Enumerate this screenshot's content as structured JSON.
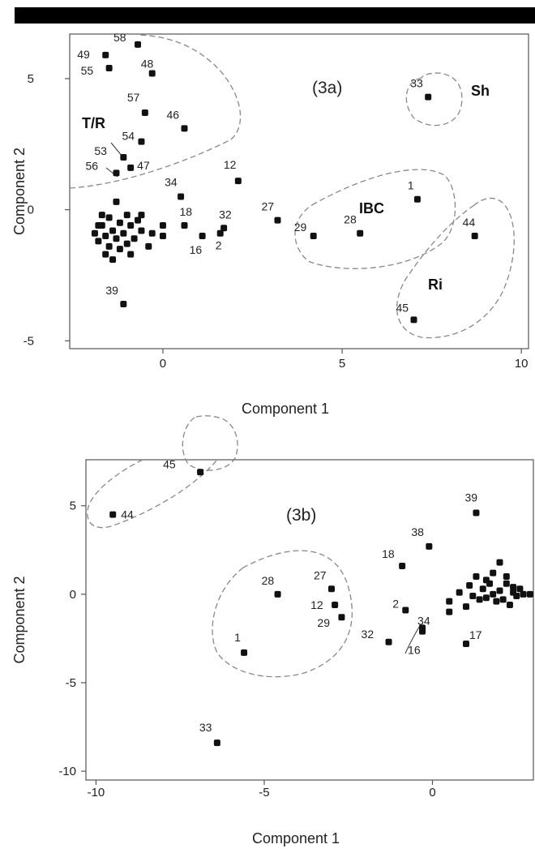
{
  "chart_data": [
    {
      "type": "scatter",
      "panel_tag": "(3a)",
      "xlabel": "Component 1",
      "ylabel": "Component 2",
      "xlim": [
        -2.6,
        10.2
      ],
      "ylim": [
        -5.3,
        6.7
      ],
      "xticks": [
        0,
        5,
        10
      ],
      "yticks": [
        -5,
        0,
        5
      ],
      "groups": [
        "T/R",
        "Sh",
        "IBC",
        "Ri"
      ],
      "points": [
        {
          "label": "58",
          "x": -0.7,
          "y": 6.3
        },
        {
          "label": "49",
          "x": -1.6,
          "y": 5.9
        },
        {
          "label": "55",
          "x": -1.5,
          "y": 5.4
        },
        {
          "label": "48",
          "x": -0.3,
          "y": 5.2
        },
        {
          "label": "57",
          "x": -0.5,
          "y": 3.7
        },
        {
          "label": "46",
          "x": 0.6,
          "y": 3.1
        },
        {
          "label": "54",
          "x": -0.6,
          "y": 2.6
        },
        {
          "label": "53",
          "x": -1.1,
          "y": 2.0
        },
        {
          "label": "47",
          "x": -0.9,
          "y": 1.6
        },
        {
          "label": "56",
          "x": -1.3,
          "y": 1.4
        },
        {
          "label": "12",
          "x": 2.1,
          "y": 1.1
        },
        {
          "label": "34",
          "x": 0.5,
          "y": 0.5
        },
        {
          "label": "18",
          "x": 0.6,
          "y": -0.6
        },
        {
          "label": "32",
          "x": 1.7,
          "y": -0.7
        },
        {
          "label": "16",
          "x": 1.1,
          "y": -1.0
        },
        {
          "label": "2",
          "x": 1.6,
          "y": -0.9
        },
        {
          "label": "27",
          "x": 3.2,
          "y": -0.4
        },
        {
          "label": "29",
          "x": 4.2,
          "y": -1.0
        },
        {
          "label": "28",
          "x": 5.5,
          "y": -0.9
        },
        {
          "label": "1",
          "x": 7.1,
          "y": 0.4
        },
        {
          "label": "33",
          "x": 7.4,
          "y": 4.3
        },
        {
          "label": "44",
          "x": 8.7,
          "y": -1.0
        },
        {
          "label": "45",
          "x": 7.0,
          "y": -4.2
        },
        {
          "label": "39",
          "x": -1.1,
          "y": -3.6
        },
        {
          "label": "",
          "x": -1.9,
          "y": -0.9
        },
        {
          "label": "",
          "x": -1.8,
          "y": -1.2
        },
        {
          "label": "",
          "x": -1.7,
          "y": -0.6
        },
        {
          "label": "",
          "x": -1.6,
          "y": -1.0
        },
        {
          "label": "",
          "x": -1.5,
          "y": -1.4
        },
        {
          "label": "",
          "x": -1.5,
          "y": -0.3
        },
        {
          "label": "",
          "x": -1.4,
          "y": -0.8
        },
        {
          "label": "",
          "x": -1.3,
          "y": -1.1
        },
        {
          "label": "",
          "x": -1.3,
          "y": 0.3
        },
        {
          "label": "",
          "x": -1.2,
          "y": -1.5
        },
        {
          "label": "",
          "x": -1.2,
          "y": -0.5
        },
        {
          "label": "",
          "x": -1.1,
          "y": -0.9
        },
        {
          "label": "",
          "x": -1.0,
          "y": -1.3
        },
        {
          "label": "",
          "x": -1.0,
          "y": -0.2
        },
        {
          "label": "",
          "x": -0.9,
          "y": -1.7
        },
        {
          "label": "",
          "x": -0.9,
          "y": -0.6
        },
        {
          "label": "",
          "x": -0.8,
          "y": -1.1
        },
        {
          "label": "",
          "x": -0.7,
          "y": -0.4
        },
        {
          "label": "",
          "x": -0.6,
          "y": -0.8
        },
        {
          "label": "",
          "x": -0.6,
          "y": -0.2
        },
        {
          "label": "",
          "x": -1.6,
          "y": -1.7
        },
        {
          "label": "",
          "x": -1.4,
          "y": -1.9
        },
        {
          "label": "",
          "x": -1.7,
          "y": -0.2
        },
        {
          "label": "",
          "x": -0.4,
          "y": -1.4
        },
        {
          "label": "",
          "x": 0.0,
          "y": -0.6
        },
        {
          "label": "",
          "x": 0.0,
          "y": -1.0
        },
        {
          "label": "",
          "x": -0.3,
          "y": -0.9
        },
        {
          "label": "",
          "x": -1.8,
          "y": -0.6
        }
      ]
    },
    {
      "type": "scatter",
      "panel_tag": "(3b)",
      "xlabel": "Component 1",
      "ylabel": "Component 2",
      "xlim": [
        -10.3,
        3.0
      ],
      "ylim": [
        -10.5,
        7.6
      ],
      "xticks": [
        -10,
        -5,
        0
      ],
      "yticks": [
        -10,
        -5,
        0,
        5
      ],
      "points": [
        {
          "label": "44",
          "x": -9.5,
          "y": 4.5
        },
        {
          "label": "45",
          "x": -6.9,
          "y": 6.9
        },
        {
          "label": "33",
          "x": -6.4,
          "y": -8.4
        },
        {
          "label": "1",
          "x": -5.6,
          "y": -3.3
        },
        {
          "label": "28",
          "x": -4.6,
          "y": 0.0
        },
        {
          "label": "27",
          "x": -3.0,
          "y": 0.3
        },
        {
          "label": "12",
          "x": -2.9,
          "y": -0.6
        },
        {
          "label": "29",
          "x": -2.7,
          "y": -1.3
        },
        {
          "label": "18",
          "x": -0.9,
          "y": 1.6
        },
        {
          "label": "38",
          "x": -0.1,
          "y": 2.7
        },
        {
          "label": "39",
          "x": 1.3,
          "y": 4.6
        },
        {
          "label": "2",
          "x": -0.8,
          "y": -0.9
        },
        {
          "label": "34",
          "x": -0.3,
          "y": -1.9
        },
        {
          "label": "16",
          "x": -0.3,
          "y": -2.1
        },
        {
          "label": "32",
          "x": -1.3,
          "y": -2.7
        },
        {
          "label": "17",
          "x": 1.0,
          "y": -2.8
        },
        {
          "label": "",
          "x": 0.5,
          "y": -0.4
        },
        {
          "label": "",
          "x": 0.5,
          "y": -1.0
        },
        {
          "label": "",
          "x": 0.8,
          "y": 0.1
        },
        {
          "label": "",
          "x": 1.0,
          "y": -0.7
        },
        {
          "label": "",
          "x": 1.1,
          "y": 0.5
        },
        {
          "label": "",
          "x": 1.2,
          "y": -0.1
        },
        {
          "label": "",
          "x": 1.3,
          "y": 1.0
        },
        {
          "label": "",
          "x": 1.4,
          "y": -0.3
        },
        {
          "label": "",
          "x": 1.5,
          "y": 0.3
        },
        {
          "label": "",
          "x": 1.6,
          "y": -0.2
        },
        {
          "label": "",
          "x": 1.7,
          "y": 0.6
        },
        {
          "label": "",
          "x": 1.8,
          "y": 1.2
        },
        {
          "label": "",
          "x": 1.9,
          "y": -0.4
        },
        {
          "label": "",
          "x": 2.0,
          "y": 1.8
        },
        {
          "label": "",
          "x": 2.0,
          "y": 0.2
        },
        {
          "label": "",
          "x": 2.1,
          "y": -0.3
        },
        {
          "label": "",
          "x": 2.2,
          "y": 0.6
        },
        {
          "label": "",
          "x": 2.2,
          "y": 1.0
        },
        {
          "label": "",
          "x": 2.3,
          "y": -0.6
        },
        {
          "label": "",
          "x": 2.4,
          "y": 0.1
        },
        {
          "label": "",
          "x": 2.4,
          "y": 0.4
        },
        {
          "label": "",
          "x": 2.5,
          "y": -0.1
        },
        {
          "label": "",
          "x": 2.6,
          "y": 0.3
        },
        {
          "label": "",
          "x": 2.7,
          "y": 0.0
        },
        {
          "label": "",
          "x": 2.9,
          "y": 0.0
        },
        {
          "label": "",
          "x": 1.8,
          "y": 0.0
        },
        {
          "label": "",
          "x": 1.6,
          "y": 0.8
        }
      ]
    }
  ]
}
